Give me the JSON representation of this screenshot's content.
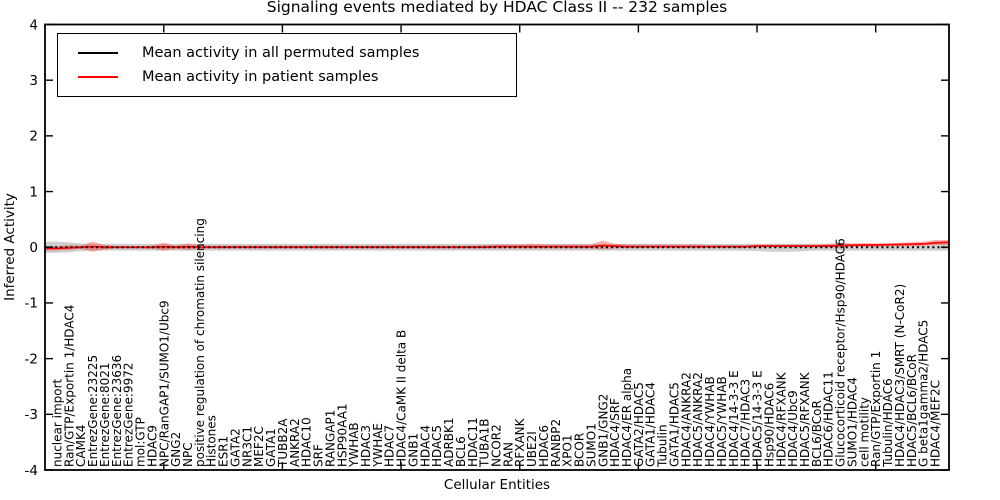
{
  "chart_data": {
    "type": "line",
    "title": "Signaling events mediated by HDAC Class II -- 232 samples",
    "xlabel": "Cellular Entities",
    "ylabel": "Inferred Activity",
    "ylim": [
      -4,
      4
    ],
    "yticks": [
      4,
      3,
      2,
      1,
      0,
      -1,
      -2,
      -3,
      -4
    ],
    "xticks_major_indices": [
      9,
      19,
      29,
      39,
      49,
      59,
      69
    ],
    "grid": false,
    "legend_position": "upper left",
    "categories": [
      "nuclear import",
      "Ran/GTP/Exportin 1/HDAC4",
      "CAMK4",
      "EntrezGene:23225",
      "EntrezGene:8021",
      "EntrezGene:23636",
      "EntrezGene:9972",
      "mol:GTP",
      "HDAC9",
      "NPC/RanGAP1/SUMO1/Ubc9",
      "GNG2",
      "NPC",
      "positive regulation of chromatin silencing",
      "Histones",
      "ESR1",
      "GATA2",
      "NR3C1",
      "MEF2C",
      "GATA1",
      "TUBB2A",
      "ANKRA2",
      "HDAC10",
      "SRF",
      "RANGAP1",
      "HSP90AA1",
      "YWHAB",
      "HDAC3",
      "YWHAE",
      "HDAC7",
      "HDAC4/CaMK II delta B",
      "GNB1",
      "HDAC4",
      "HDAC5",
      "ADRBK1",
      "BCL6",
      "HDAC11",
      "TUBA1B",
      "NCOR2",
      "RAN",
      "RFXANK",
      "UBE2I",
      "HDAC6",
      "RANBP2",
      "XPO1",
      "BCOR",
      "SUMO1",
      "GNB1/GNG2",
      "HDAC4/SRF",
      "HDAC4/ER alpha",
      "GATA2/HDAC5",
      "GATA1/HDAC4",
      "Tubulin",
      "GATA1/HDAC5",
      "HDAC4/ANKRA2",
      "HDAC5/ANKRA2",
      "HDAC4/YWHAB",
      "HDAC5/YWHAB",
      "HDAC4/14-3-3 E",
      "HDAC7/HDAC3",
      "HDAC5/14-3-3 E",
      "Hsp90/HDAC6",
      "HDAC4/RFXANK",
      "HDAC4/Ubc9",
      "HDAC5/RFXANK",
      "BCL6/BCoR",
      "HDAC6/HDAC11",
      "Glucocorticoid receptor/Hsp90/HDAC6",
      "SUMO1/HDAC4",
      "cell motility",
      "Ran/GTP/Exportin 1",
      "Tubulin/HDAC6",
      "HDAC4/HDAC3/SMRT (N-CoR2)",
      "HDAC5/BCL6/BCoR",
      "G beta1gamma2/HDAC5",
      "HDAC4/MEF2C"
    ],
    "series": [
      {
        "name": "Mean activity in all permuted samples",
        "color": "#000000",
        "linestyle": "dotted",
        "values": [
          0,
          0,
          0,
          0,
          0,
          0,
          0,
          0,
          0,
          0,
          0,
          0,
          0,
          0,
          0,
          0,
          0,
          0,
          0,
          0,
          0,
          0,
          0,
          0,
          0,
          0,
          0,
          0,
          0,
          0,
          0,
          0,
          0,
          0,
          0,
          0,
          0,
          0,
          0,
          0,
          0,
          0,
          0,
          0,
          0,
          0,
          0,
          0,
          0,
          0,
          0,
          0,
          0,
          0,
          0,
          0,
          0,
          0,
          0,
          0,
          0,
          0,
          0,
          0,
          0,
          0,
          0,
          0,
          0,
          0,
          0,
          0,
          0,
          0,
          0
        ]
      },
      {
        "name": "Mean activity in patient samples",
        "color": "#ff0000",
        "linestyle": "solid",
        "values": [
          -0.02,
          -0.01,
          0,
          0.01,
          0,
          0,
          0,
          0,
          0,
          0.01,
          0,
          0.01,
          0,
          0,
          0,
          0,
          0,
          0,
          0,
          0,
          0,
          0,
          0,
          0,
          0,
          0,
          0,
          0,
          0,
          0,
          0,
          0,
          0,
          0,
          0,
          0,
          0,
          0.01,
          0.01,
          0.01,
          0.01,
          0.01,
          0.01,
          0.01,
          0.01,
          0.01,
          0.03,
          0.02,
          0.01,
          0.01,
          0.01,
          0.01,
          0.01,
          0.01,
          0.01,
          0.01,
          0.01,
          0.01,
          0.01,
          0.02,
          0.02,
          0.02,
          0.02,
          0.02,
          0.02,
          0.02,
          0.03,
          0.035,
          0.04,
          0.04,
          0.045,
          0.05,
          0.055,
          0.06,
          0.08
        ]
      }
    ],
    "bands": [
      {
        "series": "permuted",
        "fill": "#8c8c8c",
        "opacity": 0.42,
        "upper": [
          0.1,
          0.09,
          0.07,
          0.06,
          0.06,
          0.06,
          0.06,
          0.06,
          0.06,
          0.06,
          0.06,
          0.06,
          0.06,
          0.06,
          0.06,
          0.06,
          0.06,
          0.06,
          0.06,
          0.06,
          0.06,
          0.06,
          0.06,
          0.06,
          0.06,
          0.06,
          0.06,
          0.06,
          0.06,
          0.06,
          0.06,
          0.06,
          0.06,
          0.06,
          0.06,
          0.06,
          0.06,
          0.06,
          0.06,
          0.06,
          0.06,
          0.06,
          0.06,
          0.06,
          0.06,
          0.06,
          0.06,
          0.06,
          0.06,
          0.06,
          0.06,
          0.06,
          0.06,
          0.06,
          0.06,
          0.06,
          0.06,
          0.06,
          0.06,
          0.06,
          0.06,
          0.06,
          0.06,
          0.06,
          0.06,
          0.06,
          0.06,
          0.06,
          0.06,
          0.06,
          0.06,
          0.06,
          0.06,
          0.06,
          0.07
        ],
        "lower": [
          -0.1,
          -0.09,
          -0.07,
          -0.06,
          -0.06,
          -0.06,
          -0.06,
          -0.06,
          -0.06,
          -0.06,
          -0.06,
          -0.06,
          -0.06,
          -0.06,
          -0.06,
          -0.06,
          -0.06,
          -0.06,
          -0.06,
          -0.06,
          -0.06,
          -0.06,
          -0.06,
          -0.06,
          -0.06,
          -0.06,
          -0.06,
          -0.06,
          -0.06,
          -0.06,
          -0.06,
          -0.06,
          -0.06,
          -0.06,
          -0.06,
          -0.06,
          -0.06,
          -0.06,
          -0.06,
          -0.06,
          -0.06,
          -0.06,
          -0.06,
          -0.06,
          -0.06,
          -0.06,
          -0.06,
          -0.06,
          -0.06,
          -0.06,
          -0.06,
          -0.06,
          -0.06,
          -0.06,
          -0.06,
          -0.06,
          -0.06,
          -0.06,
          -0.06,
          -0.07,
          -0.08,
          -0.08,
          -0.08,
          -0.07,
          -0.06,
          -0.06,
          -0.06,
          -0.06,
          -0.06,
          -0.06,
          -0.06,
          -0.06,
          -0.06,
          -0.06,
          -0.06
        ]
      },
      {
        "series": "patient",
        "fill": "#ff2a2a",
        "opacity": 0.38,
        "upper": [
          0.02,
          0.04,
          0.03,
          0.1,
          0.04,
          0.02,
          0.02,
          0.02,
          0.03,
          0.08,
          0.03,
          0.07,
          0.04,
          0.03,
          0.03,
          0.03,
          0.03,
          0.03,
          0.03,
          0.03,
          0.03,
          0.03,
          0.03,
          0.03,
          0.03,
          0.03,
          0.03,
          0.03,
          0.03,
          0.03,
          0.03,
          0.03,
          0.03,
          0.03,
          0.03,
          0.03,
          0.04,
          0.05,
          0.05,
          0.05,
          0.06,
          0.05,
          0.05,
          0.05,
          0.05,
          0.05,
          0.12,
          0.06,
          0.05,
          0.05,
          0.05,
          0.05,
          0.05,
          0.05,
          0.05,
          0.04,
          0.04,
          0.04,
          0.04,
          0.05,
          0.05,
          0.05,
          0.05,
          0.05,
          0.05,
          0.06,
          0.08,
          0.07,
          0.07,
          0.07,
          0.07,
          0.08,
          0.09,
          0.1,
          0.13
        ],
        "lower": [
          -0.06,
          -0.05,
          -0.03,
          -0.08,
          -0.04,
          -0.02,
          -0.02,
          -0.02,
          -0.03,
          -0.06,
          -0.03,
          -0.05,
          -0.03,
          -0.02,
          -0.02,
          -0.02,
          -0.02,
          -0.02,
          -0.02,
          -0.02,
          -0.02,
          -0.02,
          -0.02,
          -0.02,
          -0.02,
          -0.02,
          -0.02,
          -0.02,
          -0.02,
          -0.02,
          -0.02,
          -0.02,
          -0.02,
          -0.02,
          -0.02,
          -0.02,
          -0.02,
          -0.02,
          -0.02,
          -0.02,
          -0.02,
          -0.02,
          -0.02,
          -0.02,
          -0.02,
          -0.02,
          -0.04,
          -0.02,
          -0.01,
          -0.01,
          -0.01,
          -0.01,
          -0.01,
          -0.01,
          -0.01,
          -0.01,
          -0.01,
          -0.01,
          -0.01,
          -0.01,
          0,
          0,
          0,
          0,
          0,
          0,
          -0.01,
          0.01,
          0.01,
          0.01,
          0.02,
          0.02,
          0.02,
          0.03,
          0.04
        ]
      }
    ]
  }
}
